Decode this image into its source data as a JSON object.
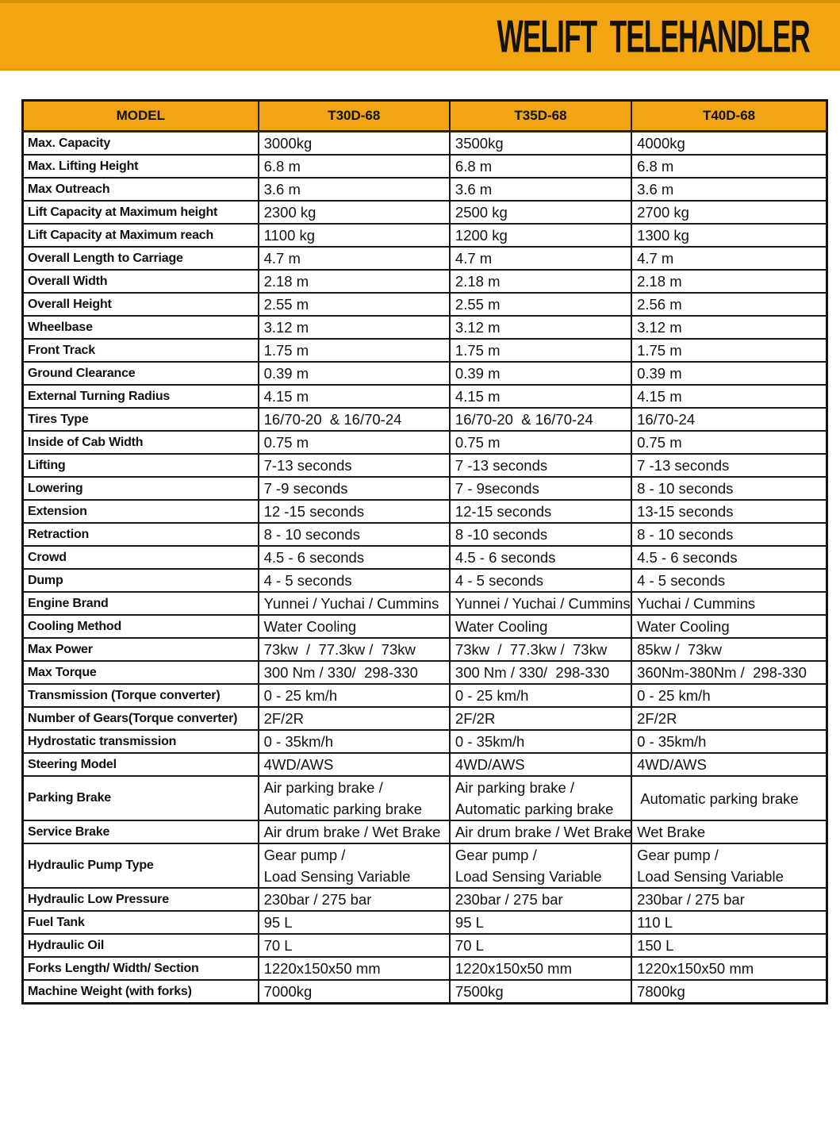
{
  "banner": {
    "title": "WELIFT TELEHANDLER",
    "bg_color": "#F2A50F",
    "text_color": "#141210"
  },
  "table": {
    "header_bg": "#F2A513",
    "headers": [
      "MODEL",
      "T30D-68",
      "T35D-68",
      "T40D-68"
    ],
    "rows": [
      {
        "label": "Max. Capacity",
        "values": [
          "3000kg",
          "3500kg",
          "4000kg"
        ]
      },
      {
        "label": "Max. Lifting Height",
        "values": [
          "6.8 m",
          "6.8 m",
          "6.8 m"
        ]
      },
      {
        "label": "Max Outreach",
        "values": [
          "3.6 m",
          "3.6 m",
          "3.6 m"
        ]
      },
      {
        "label": "Lift Capacity at Maximum height",
        "values": [
          "2300 kg",
          "2500 kg",
          "2700 kg"
        ]
      },
      {
        "label": "Lift Capacity at Maximum reach",
        "values": [
          "1100 kg",
          "1200 kg",
          "1300 kg"
        ]
      },
      {
        "label": "Overall Length to Carriage",
        "values": [
          "4.7 m",
          "4.7 m",
          "4.7 m"
        ]
      },
      {
        "label": "Overall Width",
        "values": [
          "2.18 m",
          "2.18 m",
          "2.18 m"
        ]
      },
      {
        "label": "Overall Height",
        "values": [
          "2.55 m",
          "2.55 m",
          "2.56 m"
        ]
      },
      {
        "label": "Wheelbase",
        "values": [
          "3.12 m",
          "3.12 m",
          "3.12 m"
        ]
      },
      {
        "label": "Front Track",
        "values": [
          "1.75 m",
          "1.75 m",
          "1.75 m"
        ]
      },
      {
        "label": "Ground Clearance",
        "values": [
          "0.39 m",
          "0.39 m",
          "0.39 m"
        ]
      },
      {
        "label": "External Turning Radius",
        "values": [
          "4.15 m",
          "4.15 m",
          "4.15 m"
        ]
      },
      {
        "label": "Tires Type",
        "values": [
          "16/70-20  & 16/70-24",
          "16/70-20  & 16/70-24",
          "16/70-24"
        ]
      },
      {
        "label": "Inside of Cab Width",
        "values": [
          "0.75 m",
          "0.75 m",
          "0.75 m"
        ]
      },
      {
        "label": "Lifting",
        "values": [
          "7-13 seconds",
          "7 -13 seconds",
          "7 -13 seconds"
        ]
      },
      {
        "label": "Lowering",
        "values": [
          "7 -9 seconds",
          "7 - 9seconds",
          "8 - 10 seconds"
        ]
      },
      {
        "label": "Extension",
        "values": [
          "12 -15 seconds",
          "12-15 seconds",
          "13-15 seconds"
        ]
      },
      {
        "label": "Retraction",
        "values": [
          "8 - 10 seconds",
          "8 -10 seconds",
          "8 - 10 seconds"
        ]
      },
      {
        "label": "Crowd",
        "values": [
          "4.5 - 6 seconds",
          "4.5 - 6 seconds",
          "4.5 - 6 seconds"
        ]
      },
      {
        "label": "Dump",
        "values": [
          "4 - 5 seconds",
          "4 - 5 seconds",
          "4 - 5 seconds"
        ]
      },
      {
        "label": "Engine Brand",
        "values": [
          "Yunnei / Yuchai / Cummins",
          "Yunnei / Yuchai / Cummins",
          "Yuchai / Cummins"
        ]
      },
      {
        "label": "Cooling Method",
        "values": [
          "Water Cooling",
          "Water Cooling",
          "Water Cooling"
        ]
      },
      {
        "label": "Max Power",
        "values": [
          "73kw  /  77.3kw /  73kw",
          "73kw  /  77.3kw /  73kw",
          "85kw /  73kw"
        ]
      },
      {
        "label": "Max Torque",
        "values": [
          "300 Nm / 330/  298-330",
          "300 Nm / 330/  298-330",
          "360Nm-380Nm /  298-330"
        ]
      },
      {
        "label": "Transmission (Torque converter)",
        "values": [
          "0 - 25 km/h",
          "0 - 25 km/h",
          "0 - 25 km/h"
        ]
      },
      {
        "label": "Number of Gears(Torque converter)",
        "values": [
          "2F/2R",
          "2F/2R",
          "2F/2R"
        ]
      },
      {
        "label": "Hydrostatic transmission",
        "values": [
          "0 - 35km/h",
          "0 - 35km/h",
          "0 - 35km/h"
        ]
      },
      {
        "label": "Steering Model",
        "values": [
          "4WD/AWS",
          "4WD/AWS",
          "4WD/AWS"
        ]
      },
      {
        "label": "Parking Brake",
        "values": [
          "Air parking brake /\nAutomatic parking brake",
          "Air parking brake /\nAutomatic parking brake",
          " Automatic parking brake"
        ]
      },
      {
        "label": "Service Brake",
        "values": [
          "Air drum brake / Wet Brake",
          "Air drum brake / Wet Brake",
          "Wet Brake"
        ]
      },
      {
        "label": "Hydraulic Pump Type",
        "values": [
          "Gear pump /\nLoad Sensing Variable",
          "Gear pump /\nLoad Sensing Variable",
          "Gear pump /\nLoad Sensing Variable"
        ]
      },
      {
        "label": "Hydraulic Low Pressure",
        "values": [
          "230bar / 275 bar",
          "230bar / 275 bar",
          "230bar / 275 bar"
        ]
      },
      {
        "label": "Fuel Tank",
        "values": [
          "95 L",
          "95 L",
          "110 L"
        ]
      },
      {
        "label": "Hydraulic Oil",
        "values": [
          "70 L",
          "70 L",
          "150 L"
        ]
      },
      {
        "label": "Forks Length/ Width/ Section",
        "values": [
          "1220x150x50 mm",
          "1220x150x50 mm",
          "1220x150x50 mm"
        ]
      },
      {
        "label": "Machine Weight (with forks)",
        "values": [
          "7000kg",
          "7500kg",
          "7800kg"
        ]
      }
    ]
  }
}
